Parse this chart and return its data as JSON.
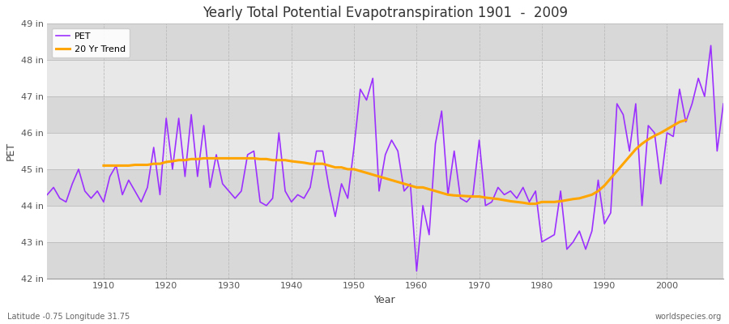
{
  "title": "Yearly Total Potential Evapotranspiration 1901  -  2009",
  "xlabel": "Year",
  "ylabel": "PET",
  "subtitle_left": "Latitude -0.75 Longitude 31.75",
  "subtitle_right": "worldspecies.org",
  "pet_color": "#9B30FF",
  "trend_color": "#FFA500",
  "bg_color": "#FFFFFF",
  "plot_bg_color": "#E8E8E8",
  "alt_band_color": "#D8D8D8",
  "ylim": [
    42,
    49
  ],
  "yticks": [
    42,
    43,
    44,
    45,
    46,
    47,
    48,
    49
  ],
  "ytick_labels": [
    "42 in",
    "43 in",
    "44 in",
    "45 in",
    "46 in",
    "47 in",
    "48 in",
    "49 in"
  ],
  "xticks": [
    1910,
    1920,
    1930,
    1940,
    1950,
    1960,
    1970,
    1980,
    1990,
    2000
  ],
  "years": [
    1901,
    1902,
    1903,
    1904,
    1905,
    1906,
    1907,
    1908,
    1909,
    1910,
    1911,
    1912,
    1913,
    1914,
    1915,
    1916,
    1917,
    1918,
    1919,
    1920,
    1921,
    1922,
    1923,
    1924,
    1925,
    1926,
    1927,
    1928,
    1929,
    1930,
    1931,
    1932,
    1933,
    1934,
    1935,
    1936,
    1937,
    1938,
    1939,
    1940,
    1941,
    1942,
    1943,
    1944,
    1945,
    1946,
    1947,
    1948,
    1949,
    1950,
    1951,
    1952,
    1953,
    1954,
    1955,
    1956,
    1957,
    1958,
    1959,
    1960,
    1961,
    1962,
    1963,
    1964,
    1965,
    1966,
    1967,
    1968,
    1969,
    1970,
    1971,
    1972,
    1973,
    1974,
    1975,
    1976,
    1977,
    1978,
    1979,
    1980,
    1981,
    1982,
    1983,
    1984,
    1985,
    1986,
    1987,
    1988,
    1989,
    1990,
    1991,
    1992,
    1993,
    1994,
    1995,
    1996,
    1997,
    1998,
    1999,
    2000,
    2001,
    2002,
    2003,
    2004,
    2005,
    2006,
    2007,
    2008,
    2009
  ],
  "pet_values": [
    44.3,
    44.5,
    44.2,
    44.1,
    44.6,
    45.0,
    44.4,
    44.2,
    44.4,
    44.1,
    44.8,
    45.1,
    44.3,
    44.7,
    44.4,
    44.1,
    44.5,
    45.6,
    44.3,
    46.4,
    45.0,
    46.4,
    44.8,
    46.5,
    44.8,
    46.2,
    44.5,
    45.4,
    44.6,
    44.4,
    44.2,
    44.4,
    45.4,
    45.5,
    44.1,
    44.0,
    44.2,
    46.0,
    44.4,
    44.1,
    44.3,
    44.2,
    44.5,
    45.5,
    45.5,
    44.5,
    43.7,
    44.6,
    44.2,
    45.6,
    47.2,
    46.9,
    47.5,
    44.4,
    45.4,
    45.8,
    45.5,
    44.4,
    44.6,
    42.2,
    44.0,
    43.2,
    45.7,
    46.6,
    44.3,
    45.5,
    44.2,
    44.1,
    44.3,
    45.8,
    44.0,
    44.1,
    44.5,
    44.3,
    44.4,
    44.2,
    44.5,
    44.1,
    44.4,
    43.0,
    43.1,
    43.2,
    44.4,
    42.8,
    43.0,
    43.3,
    42.8,
    43.3,
    44.7,
    43.5,
    43.8,
    46.8,
    46.5,
    45.5,
    46.8,
    44.0,
    46.2,
    46.0,
    44.6,
    46.0,
    45.9,
    47.2,
    46.3,
    46.8,
    47.5,
    47.0,
    48.4,
    45.5,
    46.8
  ],
  "trend_values": [
    null,
    null,
    null,
    null,
    null,
    null,
    null,
    null,
    null,
    45.1,
    45.1,
    45.1,
    45.1,
    45.1,
    45.12,
    45.12,
    45.12,
    45.15,
    45.15,
    45.2,
    45.22,
    45.25,
    45.25,
    45.28,
    45.28,
    45.3,
    45.3,
    45.3,
    45.3,
    45.3,
    45.3,
    45.3,
    45.3,
    45.3,
    45.28,
    45.28,
    45.25,
    45.25,
    45.25,
    45.22,
    45.2,
    45.18,
    45.15,
    45.15,
    45.15,
    45.1,
    45.05,
    45.05,
    45.0,
    45.0,
    44.95,
    44.9,
    44.85,
    44.8,
    44.75,
    44.7,
    44.65,
    44.6,
    44.55,
    44.5,
    44.5,
    44.45,
    44.4,
    44.35,
    44.3,
    44.28,
    44.27,
    44.26,
    44.25,
    44.25,
    44.22,
    44.2,
    44.18,
    44.15,
    44.12,
    44.1,
    44.08,
    44.05,
    44.05,
    44.1,
    44.1,
    44.1,
    44.12,
    44.15,
    44.18,
    44.2,
    44.25,
    44.3,
    44.4,
    44.55,
    44.75,
    44.95,
    45.15,
    45.35,
    45.55,
    45.7,
    45.82,
    45.92,
    46.0,
    46.1,
    46.2,
    46.3,
    46.35,
    null,
    null,
    null,
    null,
    null,
    null
  ]
}
